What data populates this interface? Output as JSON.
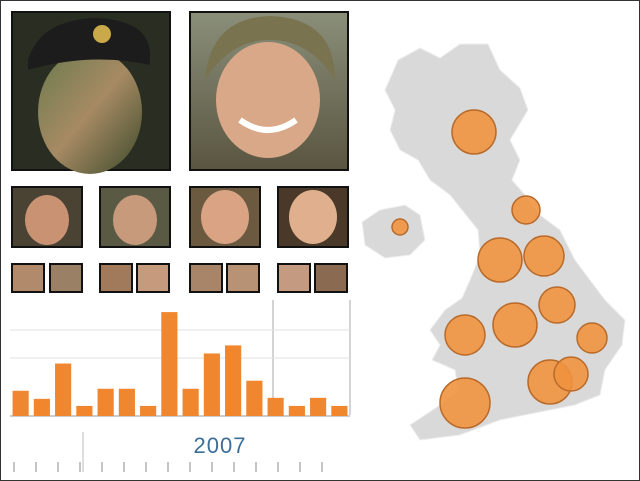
{
  "chart_data": [
    {
      "type": "bar",
      "categories": [
        null,
        null,
        null,
        null,
        null,
        null,
        null,
        null,
        null,
        null,
        null,
        null,
        null,
        null,
        null,
        null
      ],
      "values": [
        25,
        17,
        52,
        10,
        27,
        27,
        10,
        103,
        27,
        62,
        70,
        35,
        18,
        10,
        18,
        10
      ],
      "color": "#f0862e",
      "ylim": [
        0,
        115
      ],
      "grid": true,
      "annotation": "2007"
    },
    {
      "type": "bubble-map",
      "values": [
        22,
        14,
        8,
        22,
        20,
        18,
        22,
        20,
        15,
        22,
        17,
        25
      ],
      "color": "#f0923f"
    }
  ]
}
